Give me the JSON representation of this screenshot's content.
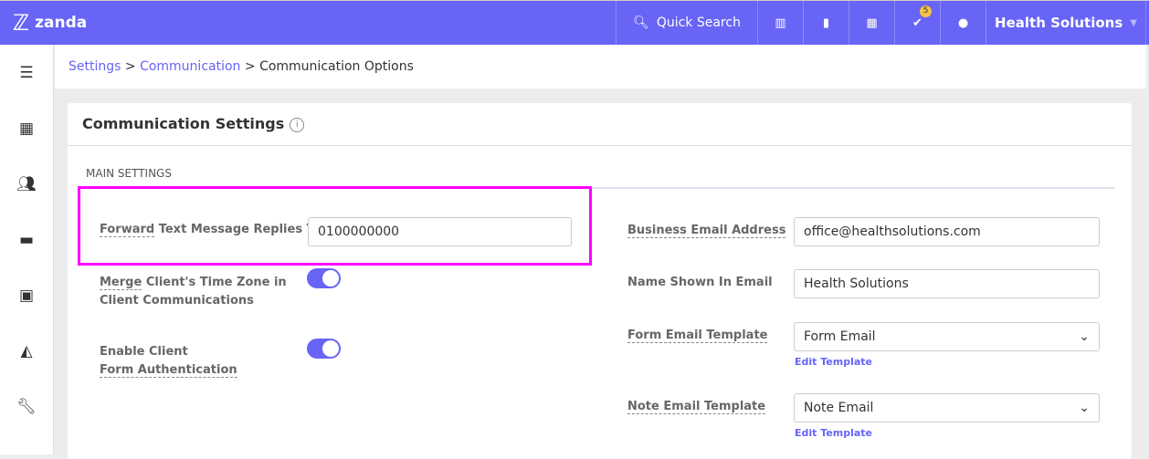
{
  "header": {
    "brand": "zanda",
    "quick_search": "Quick Search",
    "notification_count": "5",
    "account": "Health Solutions",
    "icons": [
      "reports-icon",
      "clipboard-icon",
      "calendar-icon",
      "tasks-check-icon",
      "chat-icon"
    ]
  },
  "sidebar": {
    "icons": [
      "menu-icon",
      "calendar-icon",
      "users-icon",
      "billing-icon",
      "reports-icon",
      "analytics-icon",
      "wrench-icon"
    ]
  },
  "breadcrumb": {
    "items": [
      "Settings",
      "Communication"
    ],
    "current": "Communication Options",
    "sep": " > "
  },
  "card": {
    "title": "Communication Settings",
    "section": "MAIN SETTINGS"
  },
  "left": {
    "forward_label_u": "Forward",
    "forward_label_rest": " Text Message Replies To",
    "forward_value": "0100000000",
    "merge_label_u": "Merge",
    "merge_label_rest": " Client's Time Zone in",
    "merge_label_2": "Client Communications",
    "merge_on": true,
    "auth_label_1": "Enable Client",
    "auth_label_2": "Form Authentication",
    "auth_on": true
  },
  "right": {
    "email_label": "Business Email Address",
    "email_value": "office@healthsolutions.com",
    "name_label": "Name Shown In Email",
    "name_value": "Health Solutions",
    "form_label": "Form Email Template",
    "form_value": "Form Email",
    "note_label": "Note Email Template",
    "note_value": "Note Email",
    "edit_template": "Edit Template"
  },
  "accent": "#6764f6",
  "highlight": "#ff00ff"
}
